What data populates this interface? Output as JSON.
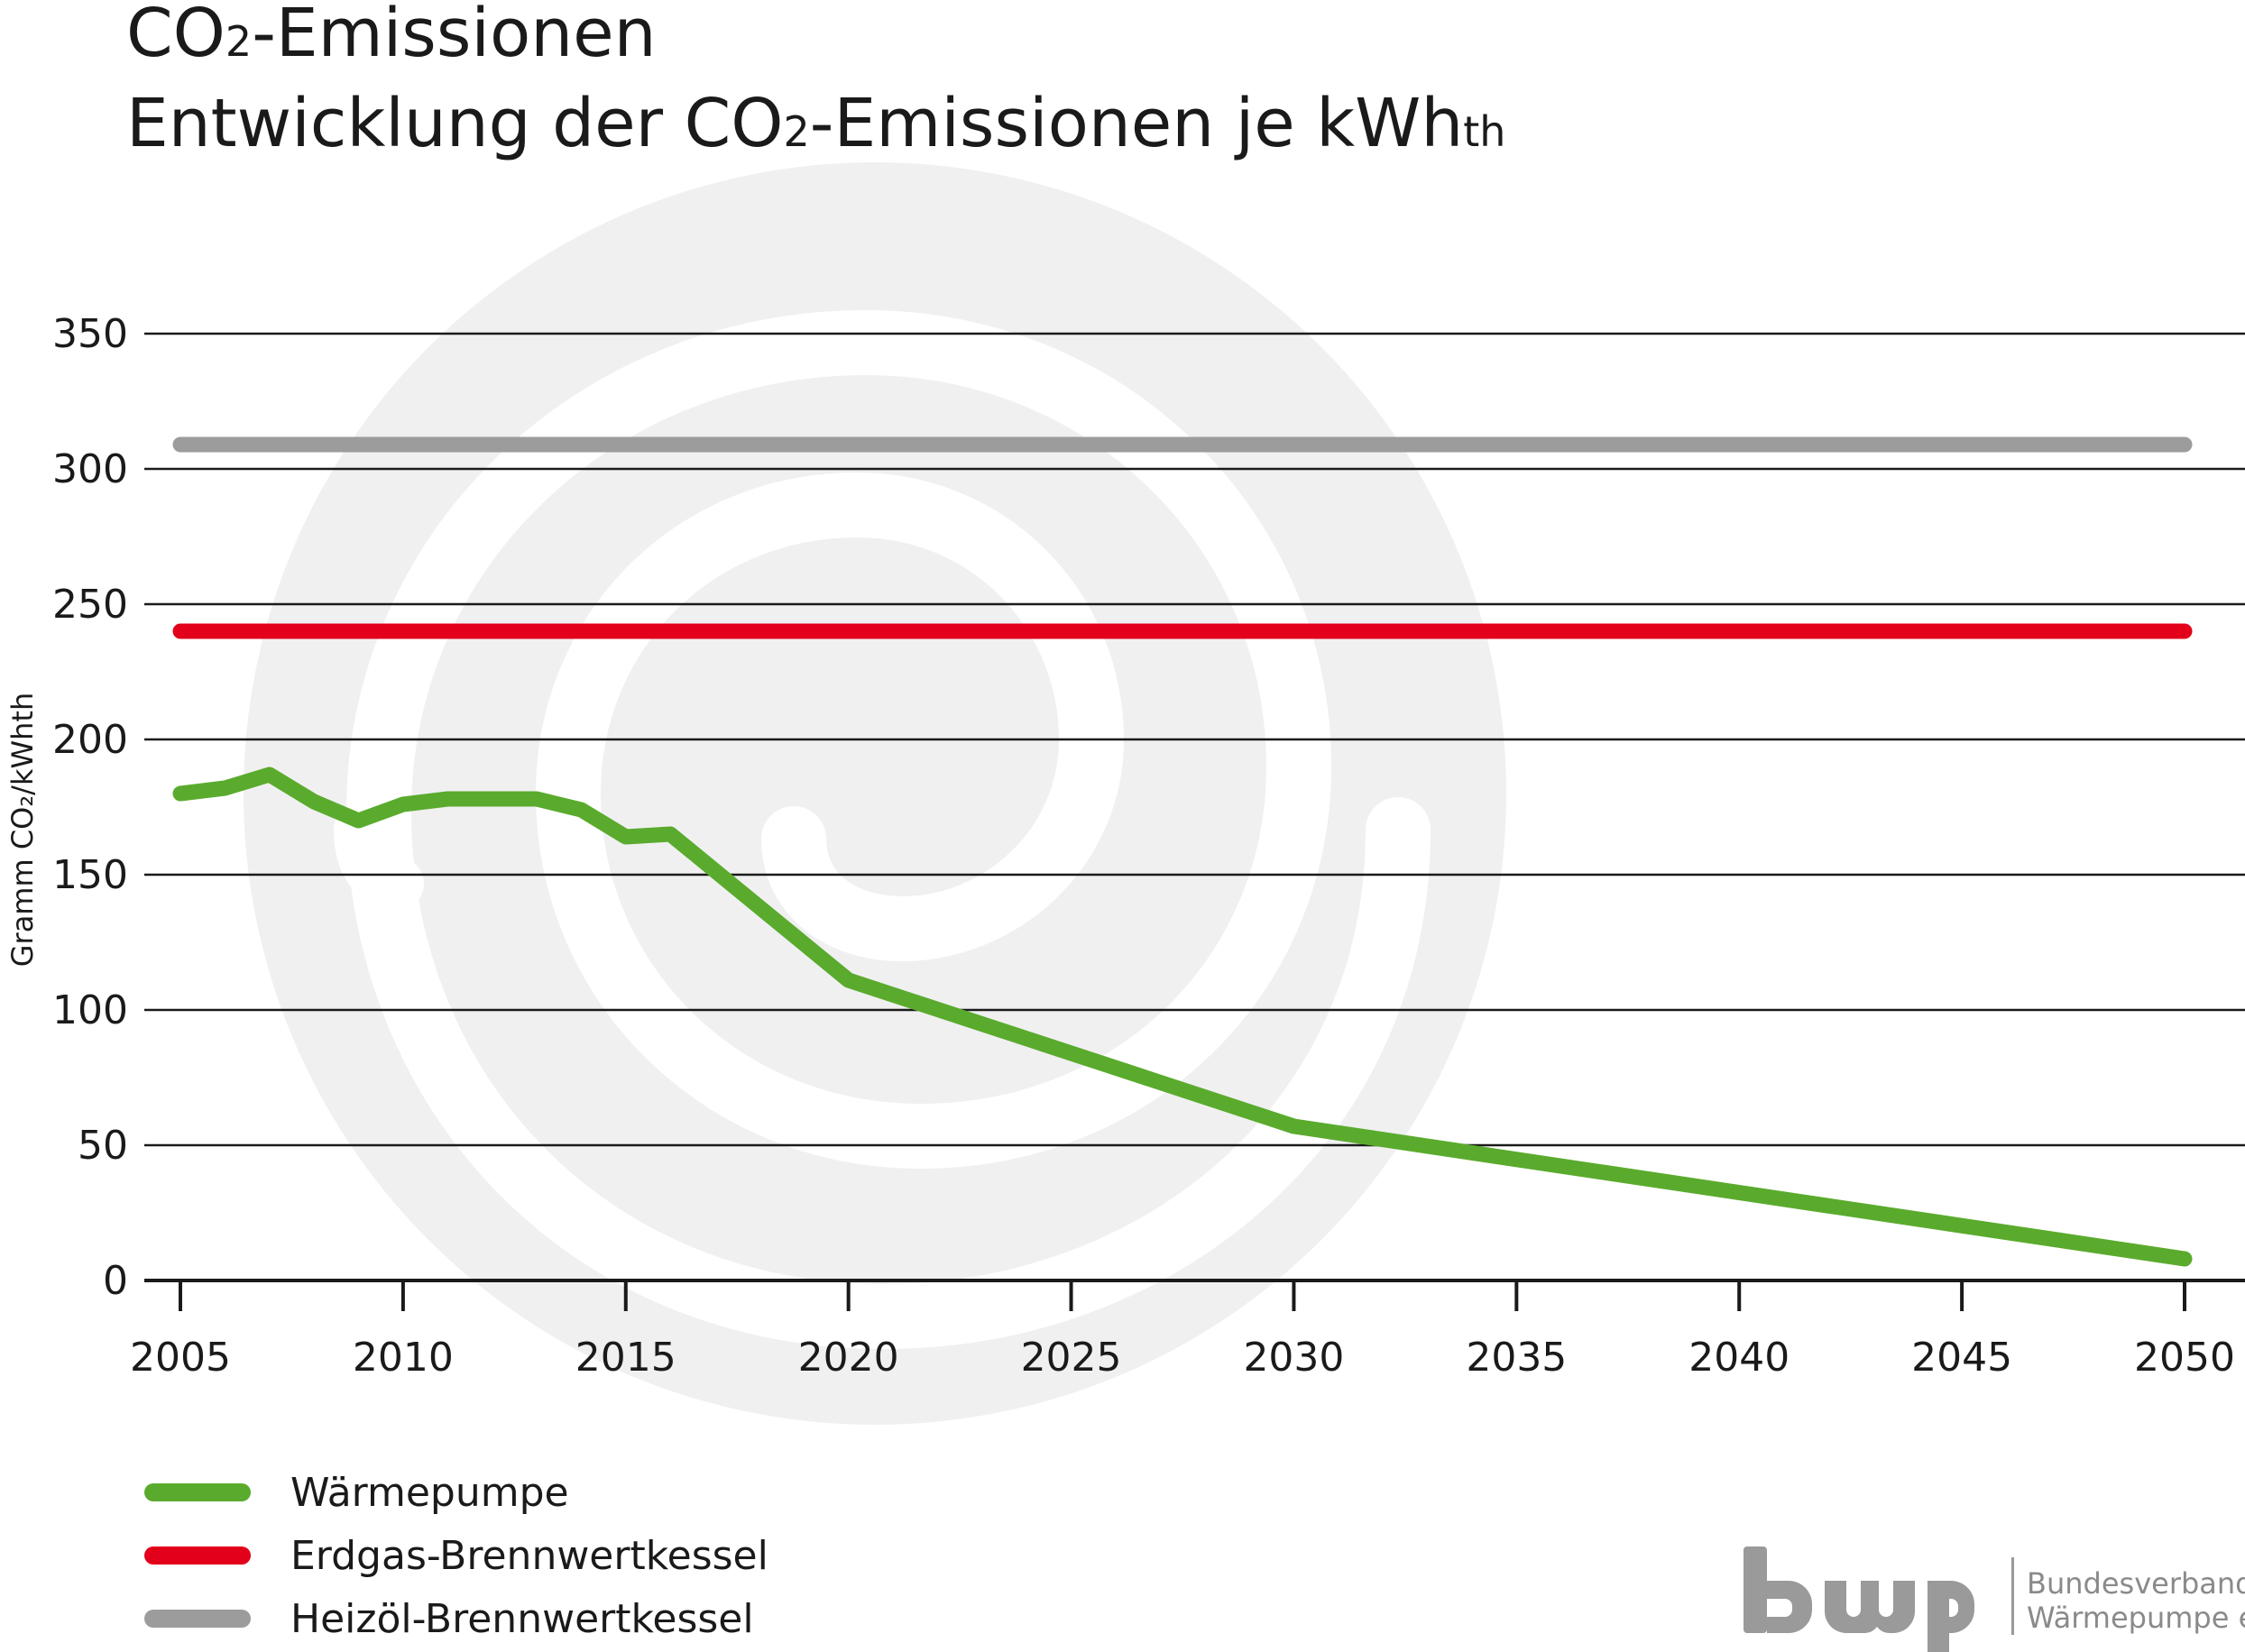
{
  "header": {
    "title_line1_a": "CO",
    "title_line1_sub": "2",
    "title_line1_b": "-Emissionen",
    "title_line2_a": "Entwicklung der CO",
    "title_line2_sub": "2",
    "title_line2_b": "-Emissionen je kWh",
    "title_line2_sub2": "th"
  },
  "chart_data": {
    "type": "line",
    "ylabel": "Gramm CO₂/kWhth",
    "ylim": [
      0,
      350
    ],
    "yticks": [
      0,
      50,
      100,
      150,
      200,
      250,
      300,
      350
    ],
    "xlim": [
      2005,
      2050
    ],
    "xticks": [
      2005,
      2010,
      2015,
      2020,
      2025,
      2030,
      2035,
      2040,
      2045,
      2050
    ],
    "grid": true,
    "legend_position": "bottom-left",
    "series": [
      {
        "name": "Wärmepumpe",
        "color": "#5aab2d",
        "x": [
          2005,
          2006,
          2007,
          2008,
          2009,
          2010,
          2011,
          2012,
          2013,
          2014,
          2015,
          2016,
          2020,
          2030,
          2050
        ],
        "y": [
          180,
          182,
          187,
          177,
          170,
          176,
          178,
          178,
          178,
          174,
          164,
          165,
          111,
          57,
          8
        ]
      },
      {
        "name": "Erdgas-Brennwertkessel",
        "color": "#e2001a",
        "x": [
          2005,
          2050
        ],
        "y": [
          240,
          240
        ]
      },
      {
        "name": "Heizöl-Brennwertkessel",
        "color": "#9c9c9c",
        "x": [
          2005,
          2050
        ],
        "y": [
          309,
          309
        ]
      }
    ]
  },
  "logo": {
    "mark": "bwp",
    "line1": "Bundesverband",
    "line2": "Wärmepumpe e.V."
  }
}
